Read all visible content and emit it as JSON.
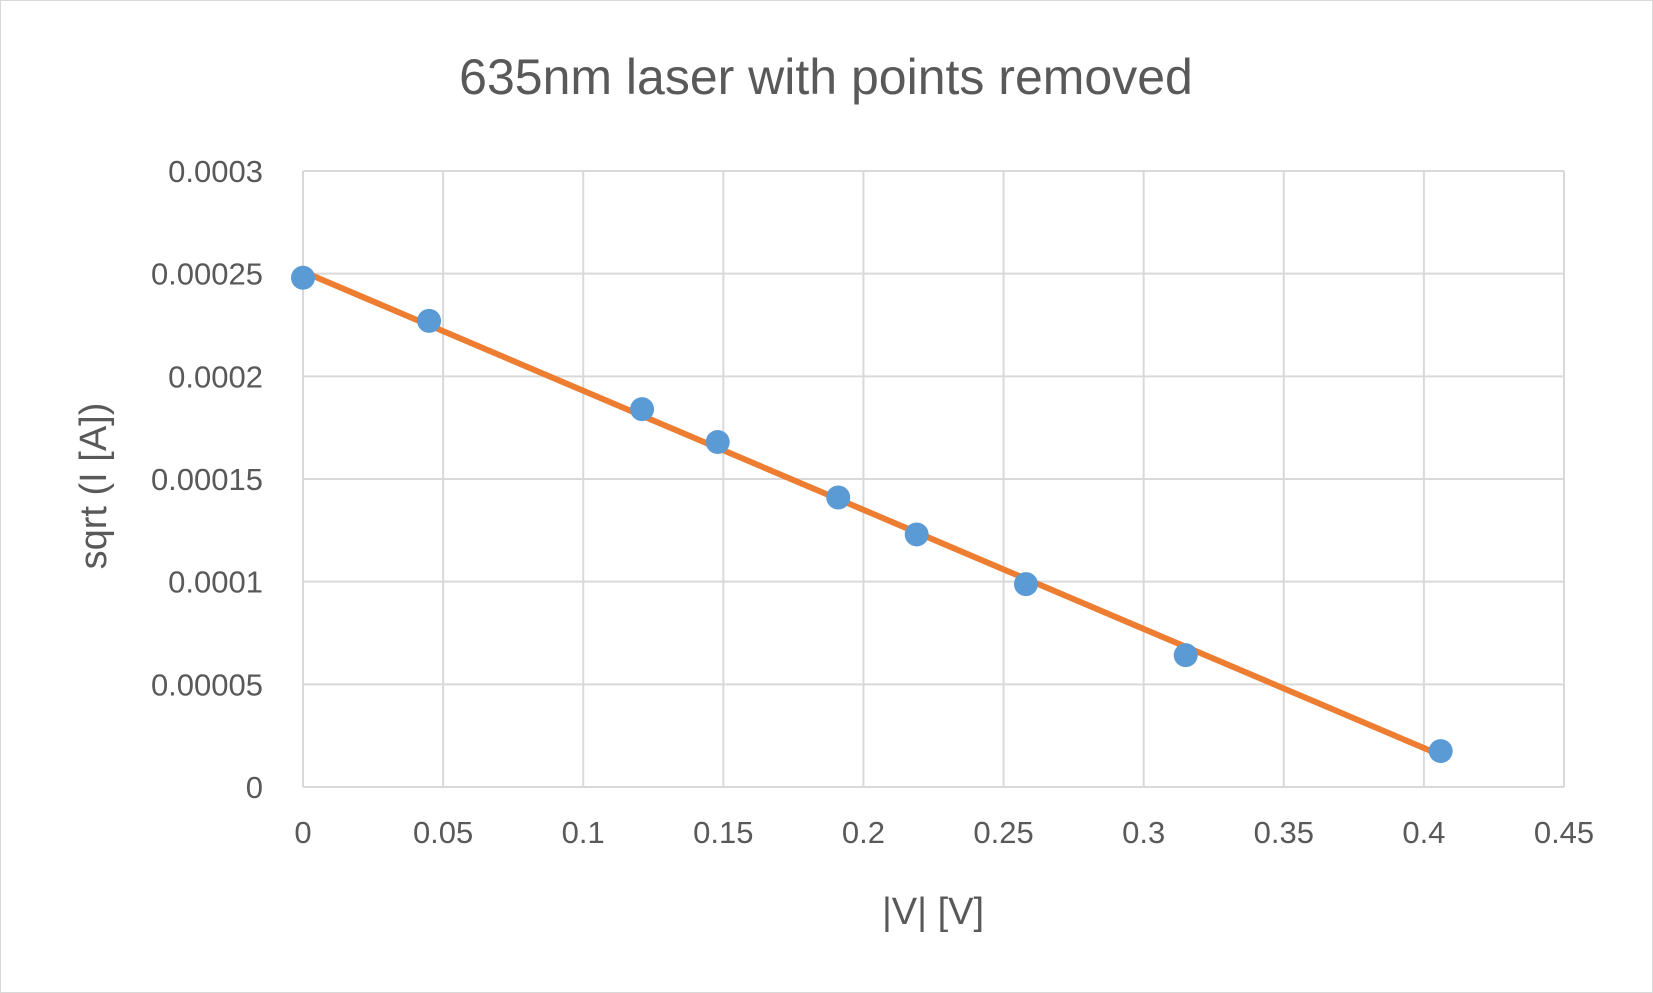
{
  "chart_data": {
    "type": "scatter",
    "title": "635nm laser with points removed",
    "xlabel": "|V| [V]",
    "ylabel": "sqrt (I [A])",
    "xlim": [
      0,
      0.45
    ],
    "ylim": [
      0,
      0.0003
    ],
    "x_ticks": [
      "0",
      "0.05",
      "0.1",
      "0.15",
      "0.2",
      "0.25",
      "0.3",
      "0.35",
      "0.4",
      "0.45"
    ],
    "y_ticks": [
      "0",
      "0.00005",
      "0.0001",
      "0.00015",
      "0.0002",
      "0.00025",
      "0.0003"
    ],
    "grid": true,
    "legend": "none",
    "series": [
      {
        "kind": "points",
        "color": "#5b9bd5",
        "x": [
          0.0,
          0.045,
          0.121,
          0.148,
          0.191,
          0.219,
          0.258,
          0.315,
          0.406
        ],
        "y": [
          0.000248,
          0.000227,
          0.000184,
          0.000168,
          0.000141,
          0.000123,
          9.88e-05,
          6.42e-05,
          1.75e-05
        ]
      },
      {
        "kind": "trendline",
        "color": "#ed7d31",
        "x": [
          0.0,
          0.406
        ],
        "y": [
          0.000251,
          1.55e-05
        ]
      }
    ]
  }
}
